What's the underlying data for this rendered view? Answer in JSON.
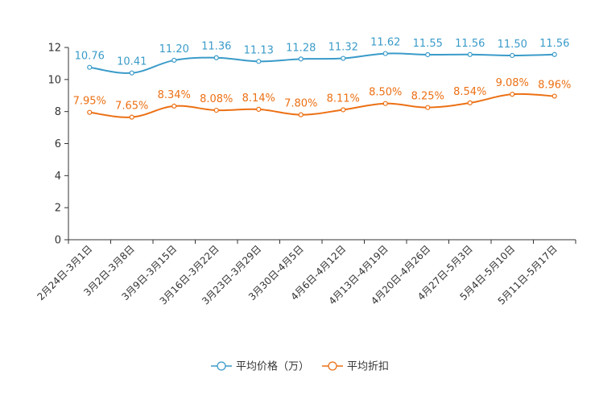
{
  "chart_data": {
    "type": "line",
    "categories": [
      "2月24日-3月1日",
      "3月2日-3月8日",
      "3月9日-3月15日",
      "3月16日-3月22日",
      "3月23日-3月29日",
      "3月30日-4月5日",
      "4月6日-4月12日",
      "4月13日-4月19日",
      "4月20日-4月26日",
      "4月27日-5月3日",
      "5月4日-5月10日",
      "5月11日-5月17日"
    ],
    "ylim": [
      0,
      12
    ],
    "yticks": [
      0,
      2,
      4,
      6,
      8,
      10,
      12
    ],
    "series": [
      {
        "name": "平均价格（万）",
        "color": "#3a9bc9",
        "values": [
          10.76,
          10.41,
          11.2,
          11.36,
          11.13,
          11.28,
          11.32,
          11.62,
          11.55,
          11.56,
          11.5,
          11.56
        ],
        "labels": [
          "10.76",
          "10.41",
          "11.20",
          "11.36",
          "11.13",
          "11.28",
          "11.32",
          "11.62",
          "11.55",
          "11.56",
          "11.50",
          "11.56"
        ]
      },
      {
        "name": "平均折扣",
        "color": "#ec7014",
        "values": [
          7.95,
          7.65,
          8.34,
          8.08,
          8.14,
          7.8,
          8.11,
          8.5,
          8.25,
          8.54,
          9.08,
          8.96
        ],
        "labels": [
          "7.95%",
          "7.65%",
          "8.34%",
          "8.08%",
          "8.14%",
          "7.80%",
          "8.11%",
          "8.50%",
          "8.25%",
          "8.54%",
          "9.08%",
          "8.96%"
        ]
      }
    ]
  }
}
